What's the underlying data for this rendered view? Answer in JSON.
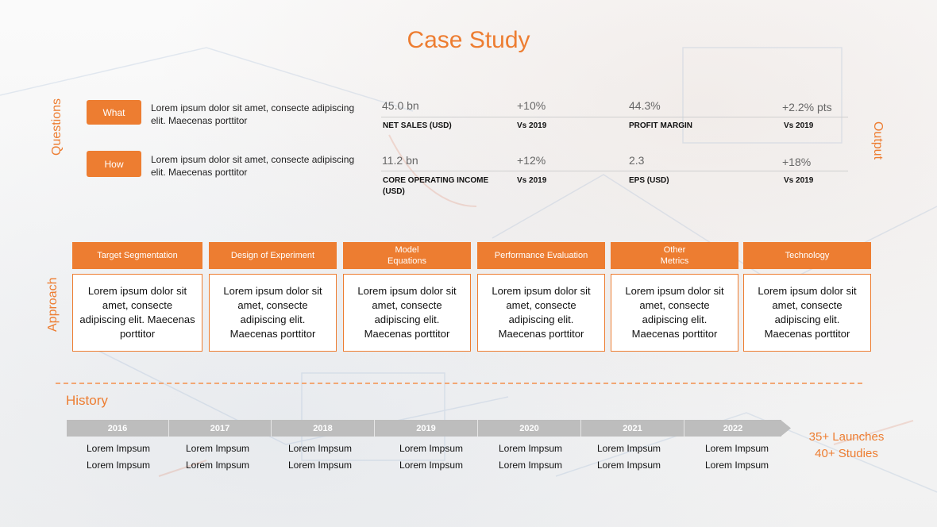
{
  "title": "Case Study",
  "labels": {
    "questions": "Questions",
    "output": "Output",
    "approach": "Approach",
    "history": "History"
  },
  "questions": [
    {
      "label": "What",
      "text": "Lorem ipsum dolor sit amet, consecte adipiscing elit. Maecenas porttitor"
    },
    {
      "label": "How",
      "text": "Lorem ipsum dolor sit amet, consecte adipiscing elit. Maecenas porttitor"
    }
  ],
  "metrics": [
    {
      "value": "45.0 bn",
      "label": "NET SALES (USD)"
    },
    {
      "value": "+10%",
      "label": "Vs 2019"
    },
    {
      "value": "44.3%",
      "label": "PROFIT MARGIN"
    },
    {
      "value": "+2.2% pts",
      "label": "Vs 2019"
    },
    {
      "value": "11.2 bn",
      "label": "CORE OPERATING INCOME (USD)"
    },
    {
      "value": "+12%",
      "label": "Vs 2019"
    },
    {
      "value": "2.3",
      "label": "EPS (USD)"
    },
    {
      "value": "+18%",
      "label": "Vs 2019"
    }
  ],
  "approach": [
    {
      "head": "Target Segmentation",
      "body": "Lorem ipsum dolor sit amet, consecte adipiscing elit. Maecenas porttitor"
    },
    {
      "head": "Design of Experiment",
      "body": "Lorem ipsum dolor sit amet, consecte adipiscing elit. Maecenas porttitor"
    },
    {
      "head": "Model\nEquations",
      "body": "Lorem ipsum dolor sit amet, consecte adipiscing elit. Maecenas porttitor"
    },
    {
      "head": "Performance Evaluation",
      "body": "Lorem ipsum dolor sit amet, consecte adipiscing elit. Maecenas porttitor"
    },
    {
      "head": "Other\nMetrics",
      "body": "Lorem ipsum dolor sit amet, consecte adipiscing elit. Maecenas porttitor"
    },
    {
      "head": "Technology",
      "body": "Lorem ipsum dolor sit amet, consecte adipiscing elit. Maecenas porttitor"
    }
  ],
  "timeline": {
    "years": [
      "2016",
      "2017",
      "2018",
      "2019",
      "2020",
      "2021",
      "2022"
    ],
    "entries": [
      [
        "Lorem Impsum",
        "Lorem Impsum"
      ],
      [
        "Lorem Impsum",
        "Lorem Impsum"
      ],
      [
        "Lorem Impsum",
        "Lorem Impsum"
      ],
      [
        "Lorem Impsum",
        "Lorem Impsum"
      ],
      [
        "Lorem Impsum",
        "Lorem Impsum"
      ],
      [
        "Lorem Impsum",
        "Lorem Impsum"
      ],
      [
        "Lorem Impsum",
        "Lorem Impsum"
      ]
    ]
  },
  "summary": {
    "line1": "35+ Launches",
    "line2": "40+ Studies"
  },
  "colors": {
    "accent": "#ed7d31",
    "timeline": "#bdbdbd"
  }
}
